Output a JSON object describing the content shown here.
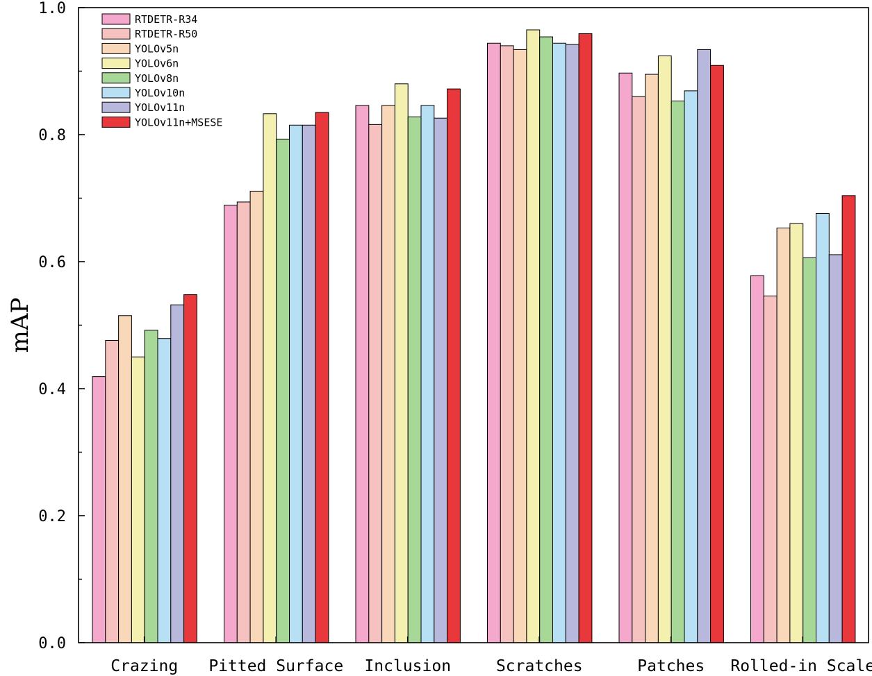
{
  "chart_data": {
    "type": "bar",
    "title": "",
    "xlabel": "",
    "ylabel": "mAP",
    "ylim": [
      0.0,
      1.0
    ],
    "yticks": [
      "0.0",
      "0.2",
      "0.4",
      "0.6",
      "0.8",
      "1.0"
    ],
    "grid": false,
    "legend_position": "top-left",
    "categories": [
      "Crazing",
      "Pitted Surface",
      "Inclusion",
      "Scratches",
      "Patches",
      "Rolled-in Scale"
    ],
    "series": [
      {
        "name": "RTDETR-R34",
        "color": "#F4A8CC",
        "values": [
          0.419,
          0.689,
          0.846,
          0.944,
          0.897,
          0.578
        ]
      },
      {
        "name": "RTDETR-R50",
        "color": "#F6C2C0",
        "values": [
          0.476,
          0.694,
          0.816,
          0.94,
          0.86,
          0.546
        ]
      },
      {
        "name": "YOLOv5n",
        "color": "#F8D8B8",
        "values": [
          0.515,
          0.711,
          0.846,
          0.934,
          0.895,
          0.653
        ]
      },
      {
        "name": "YOLOv6n",
        "color": "#F4F0B0",
        "values": [
          0.45,
          0.833,
          0.88,
          0.965,
          0.924,
          0.66
        ]
      },
      {
        "name": "YOLOv8n",
        "color": "#A8D898",
        "values": [
          0.492,
          0.793,
          0.828,
          0.954,
          0.853,
          0.606
        ]
      },
      {
        "name": "YOLOv10n",
        "color": "#B8E0F4",
        "values": [
          0.479,
          0.815,
          0.846,
          0.944,
          0.869,
          0.676
        ]
      },
      {
        "name": "YOLOv11n",
        "color": "#B8B8DC",
        "values": [
          0.532,
          0.815,
          0.826,
          0.942,
          0.934,
          0.611
        ]
      },
      {
        "name": "YOLOv11n+MSESE",
        "color": "#E8383C",
        "values": [
          0.548,
          0.835,
          0.872,
          0.959,
          0.909,
          0.704
        ]
      }
    ]
  }
}
